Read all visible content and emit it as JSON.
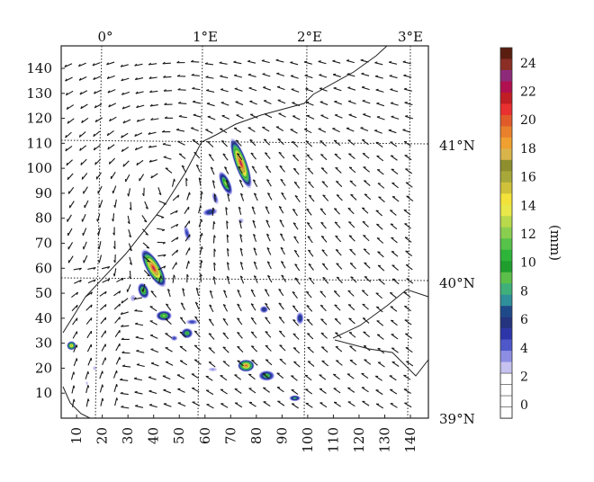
{
  "figure": {
    "longitude_labels": [
      "0°",
      "1°E",
      "2°E",
      "3°E"
    ],
    "latitude_labels": [
      "41°N",
      "40°N",
      "39°N"
    ],
    "x_axis": {
      "ticks": [
        "10",
        "20",
        "30",
        "40",
        "50",
        "60",
        "70",
        "80",
        "90",
        "100",
        "110",
        "120",
        "130",
        "140"
      ],
      "range": [
        4,
        147
      ]
    },
    "y_axis": {
      "ticks": [
        "10",
        "20",
        "30",
        "40",
        "50",
        "60",
        "70",
        "80",
        "90",
        "100",
        "110",
        "120",
        "130",
        "140"
      ],
      "range": [
        0,
        149
      ]
    },
    "colorbar": {
      "unit_label": "(mm)",
      "tick_labels": [
        "0",
        "2",
        "4",
        "6",
        "8",
        "10",
        "12",
        "14",
        "16",
        "18",
        "20",
        "22",
        "24"
      ],
      "colors": [
        "#ffffff",
        "#ffffff",
        "#ffffff",
        "#ffffff",
        "#c7c3f0",
        "#8d8ee3",
        "#4e58c8",
        "#2d36a8",
        "#24347f",
        "#1f4a8a",
        "#2f8f9a",
        "#3fb07a",
        "#5cbf4a",
        "#1f9e2e",
        "#2fb43a",
        "#56c24a",
        "#8ace4f",
        "#b8d94b",
        "#e8e84a",
        "#f3e23a",
        "#cfc23a",
        "#a8a83a",
        "#8e8e2e",
        "#d9b44a",
        "#f0a030",
        "#e8802c",
        "#e05a2a",
        "#e83030",
        "#c01e24",
        "#b01050",
        "#8e2a7a",
        "#8a2e26",
        "#5a1e10"
      ]
    },
    "precip_cells": [
      {
        "x": 74,
        "y": 102,
        "rx": 2.4,
        "ry": 10.5,
        "rot": -20,
        "peak": 24
      },
      {
        "x": 68,
        "y": 94,
        "rx": 1.8,
        "ry": 5,
        "rot": -25,
        "peak": 14
      },
      {
        "x": 64,
        "y": 88,
        "rx": 1.0,
        "ry": 2.4,
        "rot": -20,
        "peak": 6
      },
      {
        "x": 62,
        "y": 82.5,
        "rx": 2.8,
        "ry": 1.4,
        "rot": -10,
        "peak": 8
      },
      {
        "x": 74,
        "y": 79,
        "rx": 1.0,
        "ry": 0.9,
        "rot": 0,
        "peak": 4
      },
      {
        "x": 53,
        "y": 74,
        "rx": 1.0,
        "ry": 3.0,
        "rot": -15,
        "peak": 6
      },
      {
        "x": 40,
        "y": 60,
        "rx": 2.8,
        "ry": 8.5,
        "rot": -30,
        "peak": 24
      },
      {
        "x": 36,
        "y": 51,
        "rx": 2.0,
        "ry": 3.2,
        "rot": -20,
        "peak": 14
      },
      {
        "x": 32,
        "y": 48,
        "rx": 1.0,
        "ry": 1.3,
        "rot": 0,
        "peak": 4
      },
      {
        "x": 44,
        "y": 41,
        "rx": 3.0,
        "ry": 2.0,
        "rot": 0,
        "peak": 14
      },
      {
        "x": 55,
        "y": 38.5,
        "rx": 2.2,
        "ry": 1.0,
        "rot": 0,
        "peak": 6
      },
      {
        "x": 53,
        "y": 34,
        "rx": 2.2,
        "ry": 2.0,
        "rot": 0,
        "peak": 12
      },
      {
        "x": 48,
        "y": 32,
        "rx": 1.3,
        "ry": 1.0,
        "rot": 0,
        "peak": 6
      },
      {
        "x": 83,
        "y": 43.5,
        "rx": 1.6,
        "ry": 1.4,
        "rot": 0,
        "peak": 8
      },
      {
        "x": 97,
        "y": 40,
        "rx": 1.4,
        "ry": 2.4,
        "rot": 0,
        "peak": 8
      },
      {
        "x": 8,
        "y": 29,
        "rx": 1.8,
        "ry": 1.8,
        "rot": 0,
        "peak": 18
      },
      {
        "x": 76,
        "y": 21,
        "rx": 3.2,
        "ry": 2.4,
        "rot": 0,
        "peak": 22
      },
      {
        "x": 84,
        "y": 17,
        "rx": 3.0,
        "ry": 2.0,
        "rot": 0,
        "peak": 12
      },
      {
        "x": 95,
        "y": 8,
        "rx": 2.2,
        "ry": 1.2,
        "rot": 0,
        "peak": 10
      },
      {
        "x": 63,
        "y": 19.5,
        "rx": 1.6,
        "ry": 0.7,
        "rot": 0,
        "peak": 4
      },
      {
        "x": 17,
        "y": 20,
        "rx": 0.6,
        "ry": 0.7,
        "rot": 0,
        "peak": 3
      },
      {
        "x": 14,
        "y": 14,
        "rx": 0.4,
        "ry": 0.6,
        "rot": 0,
        "peak": 3
      }
    ]
  }
}
